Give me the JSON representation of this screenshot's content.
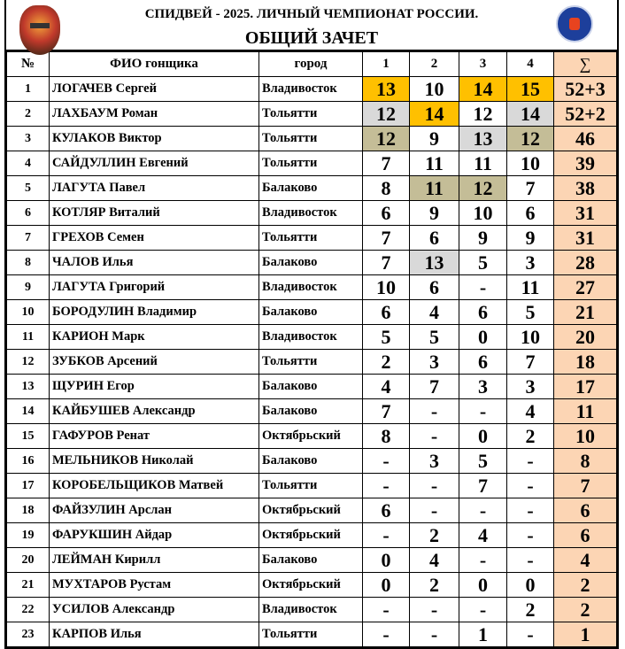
{
  "header": {
    "title": "СПИДВЕЙ - 2025.   ЛИЧНЫЙ ЧЕМПИОНАТ РОССИИ.",
    "subtitle": "ОБЩИЙ ЗАЧЕТ"
  },
  "columns": [
    "№",
    "ФИО гонщика",
    "город",
    "1",
    "2",
    "3",
    "4",
    "∑"
  ],
  "colors": {
    "gold": "#FFC000",
    "gray": "#D9D9D9",
    "tan": "#C4BD97",
    "sum": "#FCD5B4"
  },
  "rows": [
    {
      "pos": "1",
      "name": "ЛОГАЧЕВ Сергей",
      "city": "Владивосток",
      "scores": [
        "13",
        "10",
        "14",
        "15"
      ],
      "hl": [
        "gold",
        "",
        "gold",
        "gold"
      ],
      "total": "52+3"
    },
    {
      "pos": "2",
      "name": "ЛАХБАУМ Роман",
      "city": "Тольятти",
      "scores": [
        "12",
        "14",
        "12",
        "14"
      ],
      "hl": [
        "gray",
        "gold",
        "",
        "gray"
      ],
      "total": "52+2"
    },
    {
      "pos": "3",
      "name": "КУЛАКОВ Виктор",
      "city": "Тольятти",
      "scores": [
        "12",
        "9",
        "13",
        "12"
      ],
      "hl": [
        "tan",
        "",
        "gray",
        "tan"
      ],
      "total": "46"
    },
    {
      "pos": "4",
      "name": "САЙДУЛЛИН Евгений",
      "city": "Тольятти",
      "scores": [
        "7",
        "11",
        "11",
        "10"
      ],
      "hl": [
        "",
        "",
        "",
        ""
      ],
      "total": "39"
    },
    {
      "pos": "5",
      "name": "ЛАГУТА Павел",
      "city": "Балаково",
      "scores": [
        "8",
        "11",
        "12",
        "7"
      ],
      "hl": [
        "",
        "tan",
        "tan",
        ""
      ],
      "total": "38"
    },
    {
      "pos": "6",
      "name": "КОТЛЯР Виталий",
      "city": "Владивосток",
      "scores": [
        "6",
        "9",
        "10",
        "6"
      ],
      "hl": [
        "",
        "",
        "",
        ""
      ],
      "total": "31"
    },
    {
      "pos": "7",
      "name": "ГРЕХОВ Семен",
      "city": "Тольятти",
      "scores": [
        "7",
        "6",
        "9",
        "9"
      ],
      "hl": [
        "",
        "",
        "",
        ""
      ],
      "total": "31"
    },
    {
      "pos": "8",
      "name": "ЧАЛОВ Илья",
      "city": "Балаково",
      "scores": [
        "7",
        "13",
        "5",
        "3"
      ],
      "hl": [
        "",
        "gray",
        "",
        ""
      ],
      "total": "28"
    },
    {
      "pos": "9",
      "name": "ЛАГУТА Григорий",
      "city": "Владивосток",
      "scores": [
        "10",
        "6",
        "-",
        "11"
      ],
      "hl": [
        "",
        "",
        "",
        ""
      ],
      "total": "27"
    },
    {
      "pos": "10",
      "name": "БОРОДУЛИН Владимир",
      "city": "Балаково",
      "scores": [
        "6",
        "4",
        "6",
        "5"
      ],
      "hl": [
        "",
        "",
        "",
        ""
      ],
      "total": "21"
    },
    {
      "pos": "11",
      "name": "КАРИОН Марк",
      "city": "Владивосток",
      "scores": [
        "5",
        "5",
        "0",
        "10"
      ],
      "hl": [
        "",
        "",
        "",
        ""
      ],
      "total": "20"
    },
    {
      "pos": "12",
      "name": "ЗУБКОВ Арсений",
      "city": "Тольятти",
      "scores": [
        "2",
        "3",
        "6",
        "7"
      ],
      "hl": [
        "",
        "",
        "",
        ""
      ],
      "total": "18"
    },
    {
      "pos": "13",
      "name": "ЩУРИН Егор",
      "city": "Балаково",
      "scores": [
        "4",
        "7",
        "3",
        "3"
      ],
      "hl": [
        "",
        "",
        "",
        ""
      ],
      "total": "17"
    },
    {
      "pos": "14",
      "name": "КАЙБУШЕВ Александр",
      "city": "Балаково",
      "scores": [
        "7",
        "-",
        "-",
        "4"
      ],
      "hl": [
        "",
        "",
        "",
        ""
      ],
      "total": "11"
    },
    {
      "pos": "15",
      "name": "ГАФУРОВ Ренат",
      "city": "Октябрьский",
      "scores": [
        "8",
        "-",
        "0",
        "2"
      ],
      "hl": [
        "",
        "",
        "",
        ""
      ],
      "total": "10"
    },
    {
      "pos": "16",
      "name": "МЕЛЬНИКОВ Николай",
      "city": "Балаково",
      "scores": [
        "-",
        "3",
        "5",
        "-"
      ],
      "hl": [
        "",
        "",
        "",
        ""
      ],
      "total": "8"
    },
    {
      "pos": "17",
      "name": "КОРОБЕЛЬЩИКОВ Матвей",
      "city": "Тольятти",
      "scores": [
        "-",
        "-",
        "7",
        "-"
      ],
      "hl": [
        "",
        "",
        "",
        ""
      ],
      "total": "7"
    },
    {
      "pos": "18",
      "name": "ФАЙЗУЛИН Арслан",
      "city": "Октябрьский",
      "scores": [
        "6",
        "-",
        "-",
        "-"
      ],
      "hl": [
        "",
        "",
        "",
        ""
      ],
      "total": "6"
    },
    {
      "pos": "19",
      "name": "ФАРУКШИН Айдар",
      "city": "Октябрьский",
      "scores": [
        "-",
        "2",
        "4",
        "-"
      ],
      "hl": [
        "",
        "",
        "",
        ""
      ],
      "total": "6"
    },
    {
      "pos": "20",
      "name": "ЛЕЙМАН Кирилл",
      "city": "Балаково",
      "scores": [
        "0",
        "4",
        "-",
        "-"
      ],
      "hl": [
        "",
        "",
        "",
        ""
      ],
      "total": "4"
    },
    {
      "pos": "21",
      "name": "МУХТАРОВ Рустам",
      "city": "Октябрьский",
      "scores": [
        "0",
        "2",
        "0",
        "0"
      ],
      "hl": [
        "",
        "",
        "",
        ""
      ],
      "total": "2"
    },
    {
      "pos": "22",
      "name": "УСИЛОВ Александр",
      "city": "Владивосток",
      "scores": [
        "-",
        "-",
        "-",
        "2"
      ],
      "hl": [
        "",
        "",
        "",
        ""
      ],
      "total": "2"
    },
    {
      "pos": "23",
      "name": "КАРПОВ Илья",
      "city": "Тольятти",
      "scores": [
        "-",
        "-",
        "1",
        "-"
      ],
      "hl": [
        "",
        "",
        "",
        ""
      ],
      "total": "1"
    }
  ]
}
